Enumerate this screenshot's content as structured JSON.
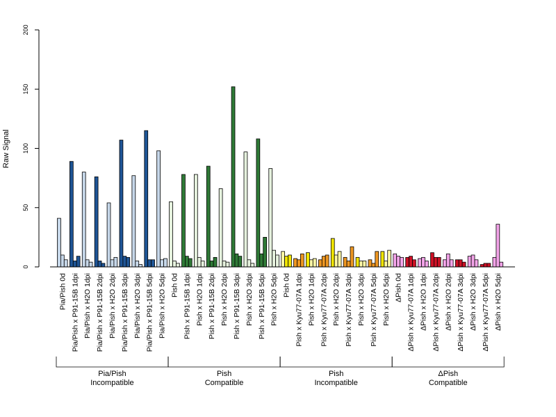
{
  "chart_data": {
    "type": "bar",
    "ylabel": "Raw Signal",
    "xlabel": "",
    "ylim": [
      0,
      200
    ],
    "yticks": [
      0,
      50,
      100,
      150,
      200
    ],
    "grid": false,
    "legend": "none",
    "bars_per_category": 3,
    "categories": [
      "Pia/Pish 0d",
      "Pia/Pish x P91-15B 1dpi",
      "Pia/Pish x H2O 1dpi",
      "Pia/Pish x P91-15B 2dpi",
      "Pia/Pish x H2O 2dpi",
      "Pia/Pish x P91-15B 3dpi",
      "Pia/Pish x H2O 3dpi",
      "Pia/Pish x P91-15B 5dpi",
      "Pia/Pish x H2O 5dpi",
      "Pish 0d",
      "Pish x P91-15B 1dpi",
      "Pish x H2O 1dpi",
      "Pish x P91-15B 2dpi",
      "Pish x H2O 2dpi",
      "Pish x P91-15B 3dpi",
      "Pish x H2O 3dpi",
      "Pish x P91-15B 5dpi",
      "Pish x H2O 5dpi",
      "Pish 0d",
      "Pish x Kyu77-07A 1dpi",
      "Pish x H2O 1dpi",
      "Pish x Kyu77-07A 2dpi",
      "Pish x H2O 2dpi",
      "Pish x Kyu77-07A 3dpi",
      "Pish x H2O 3dpi",
      "Pish x Kyu77-07A 5dpi",
      "Pish x H2O 5dpi",
      "ΔPish 0d",
      "ΔPish x Kyu77-07A 1dpi",
      "ΔPish x H2O 1dpi",
      "ΔPish x Kyu77-07A 2dpi",
      "ΔPish x H2O 2dpi",
      "ΔPish x Kyu77-07A 3dpi",
      "ΔPish x H2O 3dpi",
      "ΔPish x Kyu77-07A 5dpi",
      "ΔPish x H2O 5dpi"
    ],
    "values": [
      [
        41,
        10,
        6
      ],
      [
        89,
        5,
        9
      ],
      [
        80,
        6,
        4
      ],
      [
        76,
        5,
        3
      ],
      [
        54,
        6,
        8
      ],
      [
        107,
        9,
        8
      ],
      [
        77,
        5,
        2
      ],
      [
        115,
        6,
        6
      ],
      [
        98,
        6,
        7
      ],
      [
        55,
        5,
        3
      ],
      [
        78,
        9,
        7
      ],
      [
        78,
        8,
        5
      ],
      [
        85,
        5,
        8
      ],
      [
        66,
        5,
        4
      ],
      [
        152,
        11,
        9
      ],
      [
        97,
        6,
        3
      ],
      [
        108,
        11,
        25
      ],
      [
        83,
        14,
        10
      ],
      [
        13,
        9,
        10
      ],
      [
        7,
        6,
        11
      ],
      [
        12,
        6,
        7
      ],
      [
        6,
        9,
        10
      ],
      [
        24,
        10,
        13
      ],
      [
        8,
        5,
        17
      ],
      [
        8,
        5,
        5
      ],
      [
        6,
        3,
        13
      ],
      [
        13,
        5,
        14
      ],
      [
        11,
        9,
        8
      ],
      [
        8,
        9,
        6
      ],
      [
        7,
        8,
        5
      ],
      [
        12,
        8,
        8
      ],
      [
        6,
        11,
        6
      ],
      [
        6,
        6,
        4
      ],
      [
        9,
        10,
        6
      ],
      [
        2,
        3,
        3
      ],
      [
        8,
        36,
        4
      ]
    ],
    "groups": [
      {
        "label_line1": "Pia/Pish",
        "label_line2": "Incompatible",
        "start": 0,
        "end": 8
      },
      {
        "label_line1": "Pish",
        "label_line2": "Compatible",
        "start": 9,
        "end": 17
      },
      {
        "label_line1": "Pish",
        "label_line2": "Incompatible",
        "start": 18,
        "end": 26
      },
      {
        "label_line1": "ΔPish",
        "label_line2": "Compatible",
        "start": 27,
        "end": 35
      }
    ],
    "colors": {
      "blue": {
        "dark": "#1f5596",
        "light": "#c7d8ea"
      },
      "green": {
        "dark": "#2f7a37",
        "light": "#e6f2de"
      },
      "yellow": {
        "dark": "#f0e400",
        "light": "#fff9a6"
      },
      "orange": {
        "dark": "#ee9722",
        "light": "#fff9a6"
      },
      "red": {
        "dark": "#cd1126",
        "light": "#f2a3e8"
      },
      "pink": {
        "light": "#f2a3e8"
      }
    },
    "bar_color_scheme": [
      [
        "light",
        "light",
        "light"
      ],
      [
        "dark",
        "dark",
        "dark"
      ],
      [
        "light",
        "light",
        "light"
      ],
      [
        "dark",
        "dark",
        "dark"
      ],
      [
        "light",
        "light",
        "light"
      ],
      [
        "dark",
        "dark",
        "dark"
      ],
      [
        "light",
        "light",
        "light"
      ],
      [
        "dark",
        "dark",
        "dark"
      ],
      [
        "light",
        "light",
        "light"
      ]
    ]
  }
}
